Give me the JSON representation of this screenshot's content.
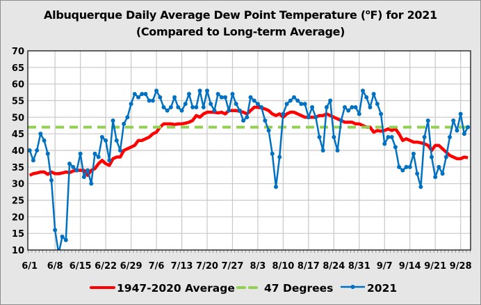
{
  "chart_data": {
    "type": "line",
    "title": {
      "line1_pre": "Albuquerque Daily Average Dew Point Temperature (",
      "line1_sup": "o",
      "line1_post": "F) for 2021",
      "line2": "(Compared to Long-term Average)"
    },
    "xlabel": "",
    "ylabel": "",
    "ylim": [
      10,
      70
    ],
    "yticks": [
      10,
      15,
      20,
      25,
      30,
      35,
      40,
      45,
      50,
      55,
      60,
      65,
      70
    ],
    "x_start": "6/1",
    "x_end": "9/30",
    "num_days": 122,
    "xtick_labels": [
      "6/1",
      "6/8",
      "6/15",
      "6/22",
      "6/29",
      "7/6",
      "7/13",
      "7/20",
      "7/27",
      "8/3",
      "8/10",
      "8/17",
      "8/24",
      "8/31",
      "9/7",
      "9/14",
      "9/21",
      "9/28"
    ],
    "xtick_step_days": 7,
    "grid": true,
    "legend_position": "bottom",
    "series": [
      {
        "name": "1947-2020 Average",
        "color": "#ff0000",
        "style": "solid",
        "values": [
          32.5,
          33,
          33.2,
          33.5,
          33.5,
          32.8,
          33.5,
          33,
          33,
          33.2,
          33.5,
          33.3,
          33.8,
          34,
          34,
          34,
          32.5,
          34,
          34.5,
          36,
          37,
          36,
          35.5,
          37.5,
          38,
          38,
          40,
          40.5,
          41,
          41.5,
          43,
          43,
          43.5,
          44,
          45,
          45.5,
          47,
          48,
          48,
          48,
          47.8,
          48,
          48,
          48.2,
          48.5,
          49,
          50.5,
          50,
          51,
          51.5,
          51.5,
          51.5,
          51.3,
          51.5,
          51,
          52,
          52,
          52,
          51.8,
          51.5,
          51,
          52,
          53,
          53,
          52.8,
          52.5,
          52,
          51,
          50.5,
          51,
          50,
          51,
          51.5,
          51.5,
          51,
          50.5,
          50,
          50,
          50,
          50,
          50.5,
          50.5,
          51,
          50.5,
          50,
          49.5,
          49,
          48.5,
          48.5,
          48.5,
          48,
          48,
          47.5,
          47,
          47,
          45.5,
          46,
          45.8,
          46,
          46.5,
          46,
          46.5,
          45,
          43,
          43.5,
          43,
          42.5,
          42.5,
          42.3,
          42,
          41.5,
          40,
          41.5,
          41.5,
          40.5,
          39.5,
          38.5,
          38,
          37.5,
          37.5,
          38,
          37.8
        ]
      },
      {
        "name": "47 Degrees",
        "color": "#92d050",
        "style": "dashed",
        "constant": 47
      },
      {
        "name": "2021",
        "color": "#0070c0",
        "style": "solid-markers",
        "values": [
          40,
          37,
          40,
          45,
          43,
          39,
          31,
          16,
          9,
          14,
          13,
          36,
          35,
          34,
          39,
          32,
          34,
          30,
          39,
          38,
          44,
          43,
          37,
          49,
          43,
          40,
          48,
          50,
          54,
          57,
          56,
          57,
          57,
          55,
          55,
          58,
          56,
          53,
          52,
          53,
          56,
          53,
          52,
          54,
          57,
          53,
          53,
          58,
          53,
          58,
          54,
          52,
          57,
          56,
          56,
          52,
          57,
          54,
          52,
          49,
          50,
          56,
          55,
          54,
          53,
          49,
          46,
          39,
          29,
          38,
          51,
          54,
          55,
          56,
          55,
          54,
          54,
          50,
          53,
          50,
          44,
          40,
          53,
          55,
          44,
          40,
          49,
          53,
          52,
          53,
          53,
          51,
          58,
          56,
          53,
          57,
          54,
          51,
          42,
          44,
          44,
          41,
          35,
          34,
          35,
          35,
          39,
          33,
          29,
          44,
          49,
          38,
          32,
          35,
          33,
          38,
          44,
          49,
          46,
          51,
          45,
          47
        ]
      }
    ]
  }
}
